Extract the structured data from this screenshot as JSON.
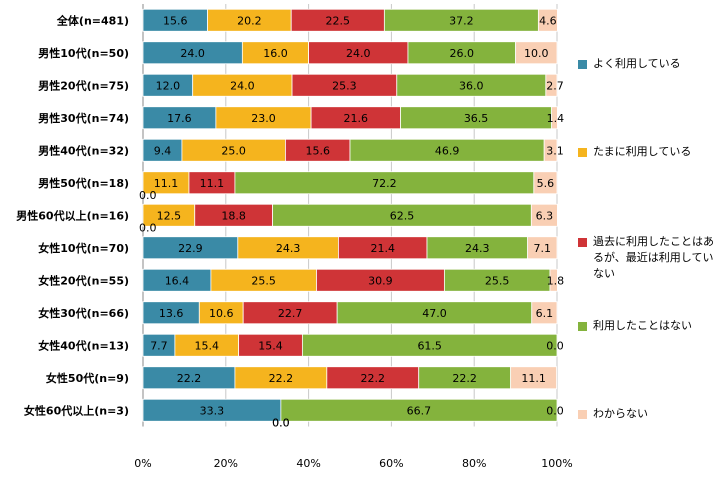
{
  "chart_data": {
    "type": "bar",
    "orientation": "horizontal",
    "stacked": true,
    "categories": [
      "全体(n=481)",
      "男性10代(n=50)",
      "男性20代(n=75)",
      "男性30代(n=74)",
      "男性40代(n=32)",
      "男性50代(n=18)",
      "男性60代以上(n=16)",
      "女性10代(n=70)",
      "女性20代(n=55)",
      "女性30代(n=66)",
      "女性40代(n=13)",
      "女性50代(n=9)",
      "女性60代以上(n=3)"
    ],
    "series": [
      {
        "name": "よく利用している",
        "color": "#3a8aa6",
        "values": [
          15.6,
          24.0,
          12.0,
          17.6,
          9.4,
          0.0,
          0.0,
          22.9,
          16.4,
          13.6,
          7.7,
          22.2,
          33.3
        ]
      },
      {
        "name": "たまに利用している",
        "color": "#f5b41e",
        "values": [
          20.2,
          16.0,
          24.0,
          23.0,
          25.0,
          11.1,
          12.5,
          24.3,
          25.5,
          10.6,
          15.4,
          22.2,
          0.0
        ]
      },
      {
        "name": "過去に利用したことはあるが、最近は利用していない",
        "color": "#cf3437",
        "values": [
          22.5,
          24.0,
          25.3,
          21.6,
          15.6,
          11.1,
          18.8,
          21.4,
          30.9,
          22.7,
          15.4,
          22.2,
          0.0
        ]
      },
      {
        "name": "利用したことはない",
        "color": "#84b33d",
        "values": [
          37.2,
          26.0,
          36.0,
          36.5,
          46.9,
          72.2,
          62.5,
          24.3,
          25.5,
          47.0,
          61.5,
          22.2,
          66.7
        ]
      },
      {
        "name": "わからない",
        "color": "#f9cfb4",
        "values": [
          4.6,
          10.0,
          2.7,
          1.4,
          3.1,
          5.6,
          6.3,
          7.1,
          1.8,
          6.1,
          0.0,
          11.1,
          0.0
        ]
      }
    ],
    "xticks": [
      "0%",
      "20%",
      "40%",
      "60%",
      "80%",
      "100%"
    ],
    "xlim": [
      0,
      100
    ],
    "grid": true,
    "legend_position": "right"
  }
}
